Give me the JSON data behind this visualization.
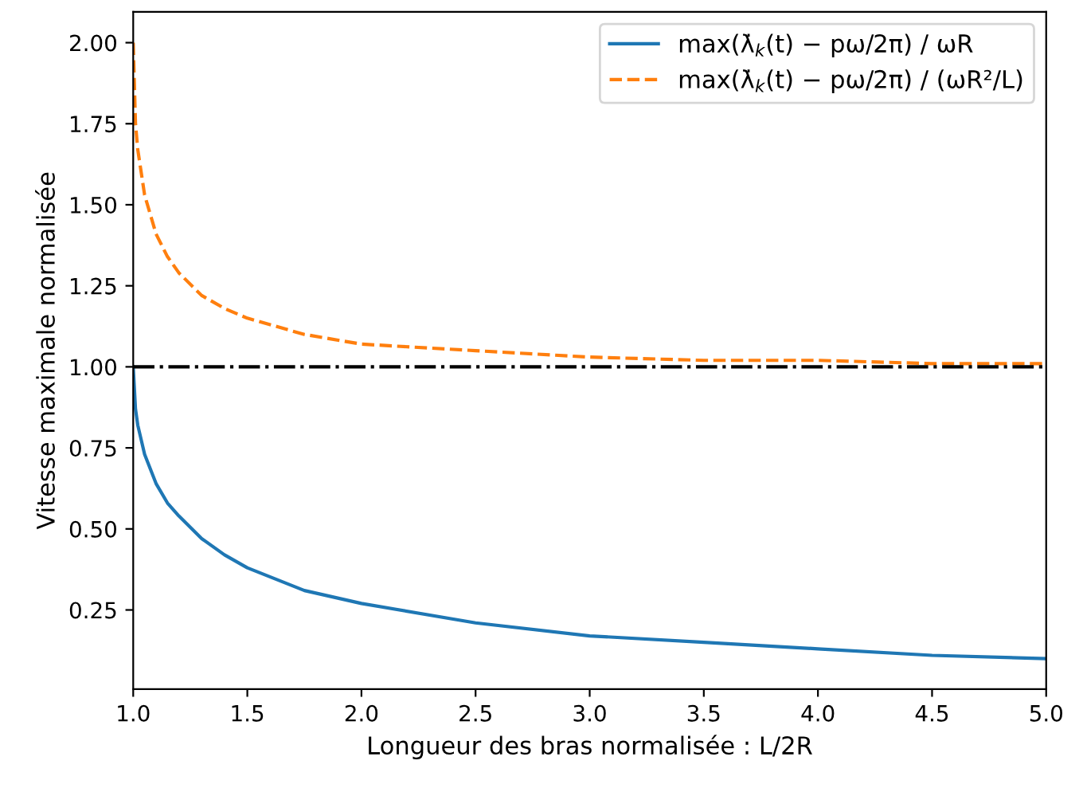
{
  "chart_data": {
    "type": "line",
    "xlabel": "Longueur des bras normalisée : L/2R",
    "ylabel": "Vitesse maximale normalisée",
    "x": [
      1.0,
      1.01,
      1.02,
      1.05,
      1.1,
      1.15,
      1.2,
      1.3,
      1.4,
      1.5,
      1.75,
      2.0,
      2.5,
      3.0,
      3.5,
      4.0,
      4.5,
      5.0
    ],
    "series": [
      {
        "name": "max(λ̇$_{k}$(t) − pω/2π) / ωR",
        "color": "#1f77b4",
        "line_style": "solid",
        "values": [
          1.0,
          0.87,
          0.82,
          0.73,
          0.64,
          0.58,
          0.54,
          0.47,
          0.42,
          0.38,
          0.31,
          0.27,
          0.21,
          0.17,
          0.15,
          0.13,
          0.11,
          0.1
        ]
      },
      {
        "name": "max(λ̇$_{k}$(t) − pω/2π) / (ωR²/L)",
        "color": "#ff7f0e",
        "line_style": "dashed",
        "values": [
          2.0,
          1.75,
          1.67,
          1.53,
          1.41,
          1.34,
          1.29,
          1.22,
          1.18,
          1.15,
          1.1,
          1.07,
          1.05,
          1.03,
          1.02,
          1.02,
          1.01,
          1.01
        ]
      }
    ],
    "ref_lines": [
      {
        "axis": "y",
        "value": 1.0,
        "label": null,
        "color": "#000000",
        "line_style": "dashdot"
      }
    ],
    "xlim": [
      1.0,
      5.0
    ],
    "xticks": [
      {
        "value": 1.0,
        "label": "1.0"
      },
      {
        "value": 1.5,
        "label": "1.5"
      },
      {
        "value": 2.0,
        "label": "2.0"
      },
      {
        "value": 2.5,
        "label": "2.5"
      },
      {
        "value": 3.0,
        "label": "3.0"
      },
      {
        "value": 3.5,
        "label": "3.5"
      },
      {
        "value": 4.0,
        "label": "4.0"
      },
      {
        "value": 4.5,
        "label": "4.5"
      },
      {
        "value": 5.0,
        "label": "5.0"
      }
    ],
    "ylim": [
      0.006,
      2.095
    ],
    "yticks": [
      0.25,
      {
        "value": 0.5,
        "label": "0.50"
      },
      0.75,
      {
        "value": 1.0,
        "label": "1.00"
      },
      1.25,
      {
        "value": 1.5,
        "label": "1.50"
      },
      1.75,
      {
        "value": 2.0,
        "label": "2.00"
      }
    ],
    "grid": false,
    "legend": "top right",
    "marker": "none"
  }
}
